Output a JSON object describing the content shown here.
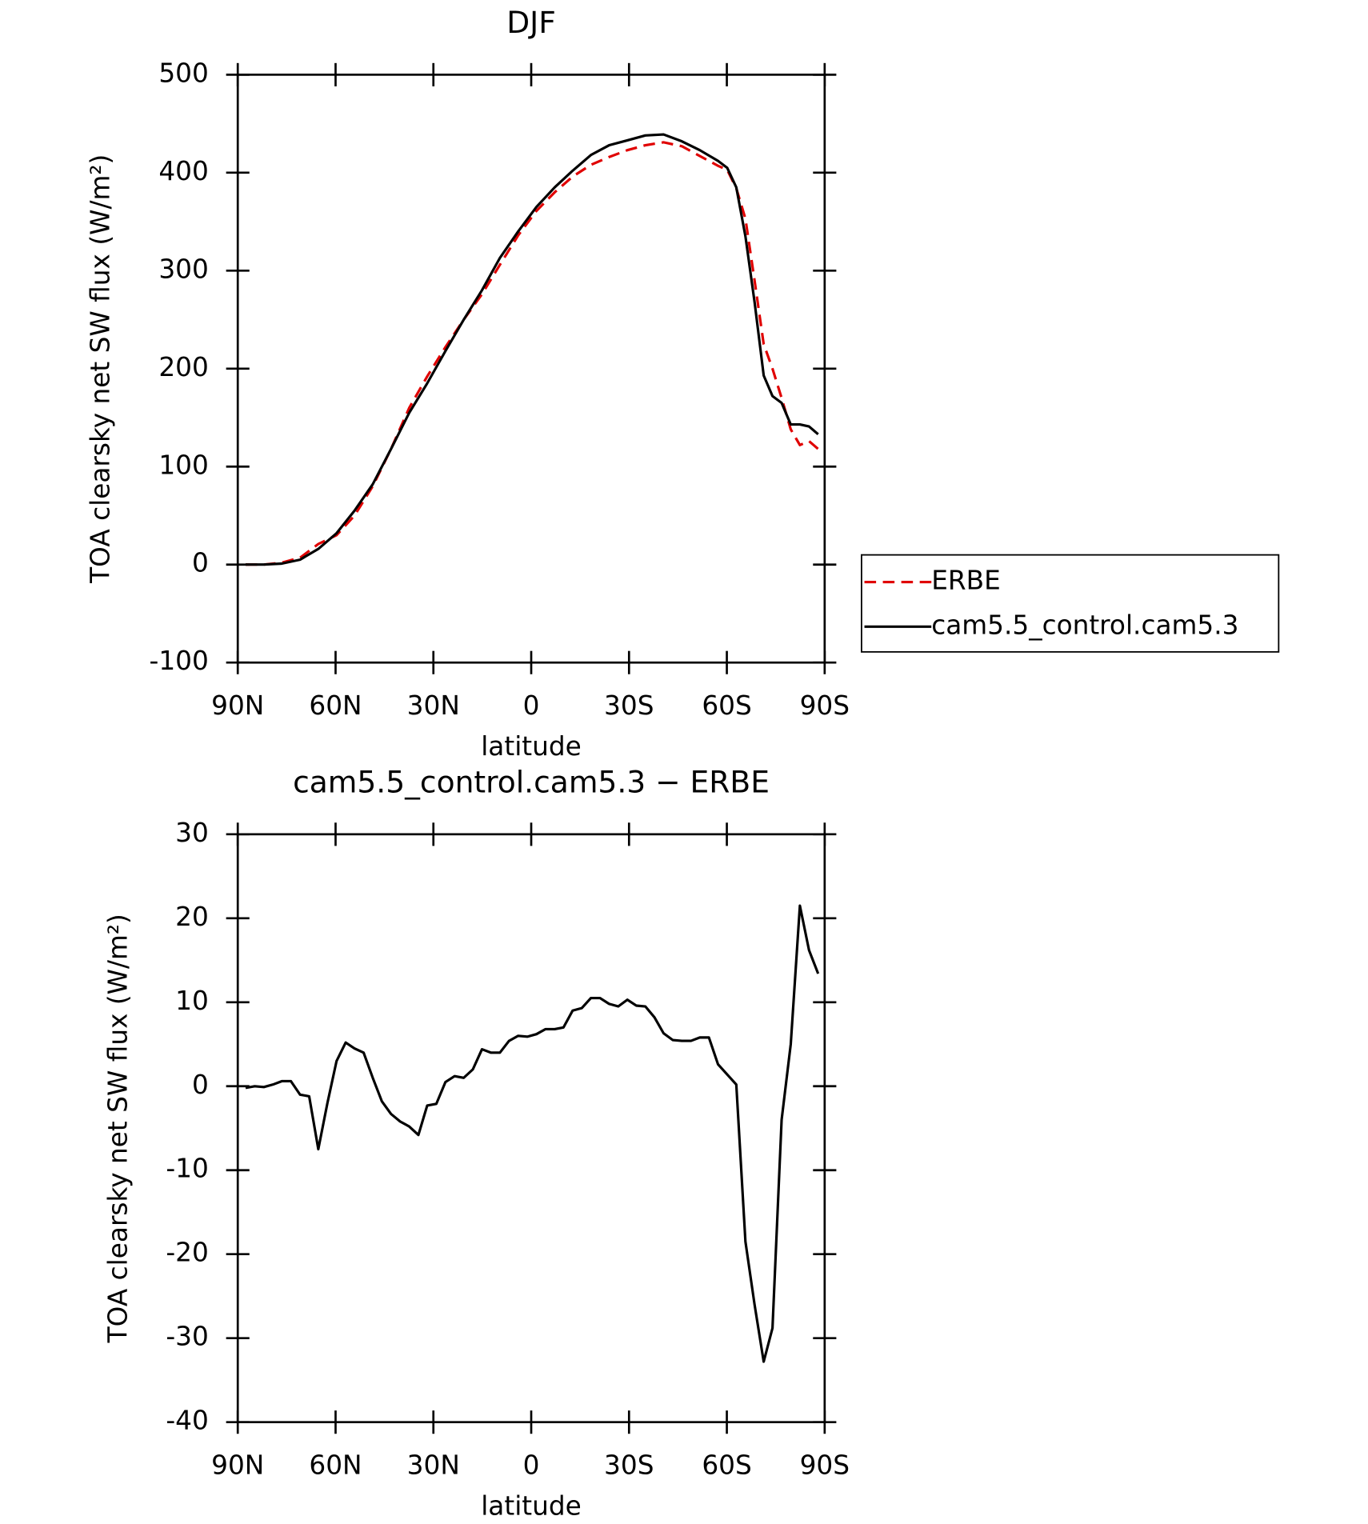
{
  "chart_data": [
    {
      "type": "line",
      "title": "DJF",
      "x_label": "latitude",
      "y_label": "TOA clearsky net SW flux (W/m²)",
      "x": [
        87.6,
        82.0,
        76.5,
        70.9,
        65.3,
        59.7,
        54.2,
        48.6,
        43.0,
        37.4,
        31.9,
        26.3,
        20.7,
        15.1,
        9.6,
        4.0,
        -1.6,
        -7.2,
        -12.7,
        -18.3,
        -23.9,
        -29.5,
        -35.0,
        -40.6,
        -46.2,
        -51.7,
        -57.3,
        -60.1,
        -62.9,
        -65.7,
        -68.5,
        -71.3,
        -74.0,
        -76.8,
        -79.6,
        -82.4,
        -85.2,
        -88.0
      ],
      "series": [
        {
          "name": "ERBE",
          "color": "#e00000",
          "line_style": "dashed",
          "values": [
            0,
            0,
            2,
            7,
            21,
            30,
            50,
            80,
            118,
            160,
            192,
            222,
            250,
            276,
            306,
            336,
            361,
            380,
            396,
            408,
            416,
            423,
            428,
            431,
            427,
            417,
            407,
            403,
            384,
            353,
            290,
            225,
            200,
            170,
            138,
            122,
            126,
            118
          ]
        },
        {
          "name": "cam5.5_control.cam5.3",
          "color": "#000000",
          "line_style": "solid",
          "values": [
            0,
            0,
            1,
            5,
            16,
            32,
            55,
            82,
            118,
            155,
            185,
            218,
            250,
            280,
            313,
            340,
            365,
            385,
            402,
            418,
            428,
            433,
            438,
            439,
            432,
            423,
            412,
            405,
            385,
            335,
            268,
            193,
            172,
            165,
            143,
            143,
            141,
            133
          ]
        }
      ],
      "xlim": [
        90,
        -90
      ],
      "xticks": [
        {
          "value": 90,
          "label": "90N"
        },
        {
          "value": 60,
          "label": "60N"
        },
        {
          "value": 30,
          "label": "30N"
        },
        0,
        {
          "value": -30,
          "label": "30S"
        },
        {
          "value": -60,
          "label": "60S"
        },
        {
          "value": -90,
          "label": "90S"
        }
      ],
      "ylim": [
        -100,
        500
      ],
      "yticks": [
        -100,
        0,
        100,
        200,
        300,
        400,
        500
      ],
      "legend": "right"
    },
    {
      "type": "line",
      "title": "cam5.5_control.cam5.3 − ERBE",
      "x_label": "latitude",
      "y_label": "TOA clearsky net SW flux (W/m²)",
      "x": [
        87.6,
        84.8,
        82.0,
        79.2,
        76.5,
        73.7,
        70.9,
        68.1,
        65.3,
        62.5,
        59.7,
        56.9,
        54.2,
        51.4,
        48.6,
        45.8,
        43.0,
        40.2,
        37.4,
        34.6,
        31.9,
        29.1,
        26.3,
        23.5,
        20.7,
        17.9,
        15.1,
        12.4,
        9.6,
        6.8,
        4.0,
        1.2,
        -1.6,
        -4.4,
        -7.2,
        -9.9,
        -12.7,
        -15.5,
        -18.3,
        -21.1,
        -23.9,
        -26.7,
        -29.5,
        -32.2,
        -35.0,
        -37.8,
        -40.6,
        -43.4,
        -46.2,
        -49.0,
        -51.7,
        -54.5,
        -57.3,
        -60.1,
        -62.9,
        -65.7,
        -68.5,
        -71.3,
        -74.0,
        -76.8,
        -79.6,
        -82.4,
        -85.2,
        -88.0
      ],
      "values": [
        -0.2,
        0,
        -0.1,
        0.2,
        0.6,
        0.6,
        -1,
        -1.2,
        -7.5,
        -2,
        3,
        5.2,
        4.5,
        4,
        1,
        -1.8,
        -3.3,
        -4.2,
        -4.8,
        -5.8,
        -2.3,
        -2.1,
        0.5,
        1.2,
        1,
        2,
        4.4,
        4,
        4,
        5.4,
        6,
        5.9,
        6.2,
        6.8,
        6.8,
        7,
        9,
        9.3,
        10.5,
        10.5,
        9.8,
        9.5,
        10.3,
        9.6,
        9.5,
        8.2,
        6.3,
        5.5,
        5.4,
        5.4,
        5.8,
        5.8,
        2.6,
        1.4,
        0.2,
        -18.5,
        -26,
        -32.8,
        -28.8,
        -4,
        5,
        21.5,
        16.2,
        13.4
      ],
      "color": "#000000",
      "xlim": [
        90,
        -90
      ],
      "xticks": [
        {
          "value": 90,
          "label": "90N"
        },
        {
          "value": 60,
          "label": "60N"
        },
        {
          "value": 30,
          "label": "30N"
        },
        0,
        {
          "value": -30,
          "label": "30S"
        },
        {
          "value": -60,
          "label": "60S"
        },
        {
          "value": -90,
          "label": "90S"
        }
      ],
      "ylim": [
        -40,
        30
      ],
      "yticks": [
        -40,
        -30,
        -20,
        -10,
        0,
        10,
        20,
        30
      ]
    }
  ]
}
